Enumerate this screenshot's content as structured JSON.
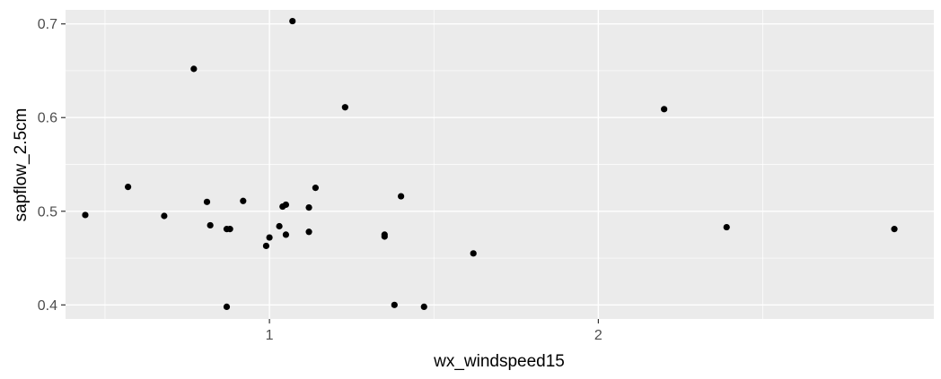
{
  "chart_data": {
    "type": "scatter",
    "title": "",
    "xlabel": "wx_windspeed15",
    "ylabel": "sapflow_2.5cm",
    "xlim": [
      0.38,
      3.02
    ],
    "ylim": [
      0.385,
      0.715
    ],
    "x_ticks": [
      1,
      2
    ],
    "x_tick_labels": [
      "1",
      "2"
    ],
    "x_minor_ticks": [
      0.5,
      1.5,
      2.5
    ],
    "y_ticks": [
      0.4,
      0.5,
      0.6,
      0.7
    ],
    "y_tick_labels": [
      "0.4",
      "0.5",
      "0.6",
      "0.7"
    ],
    "y_minor_ticks": [
      0.45,
      0.55,
      0.65
    ],
    "grid": true,
    "legend": "none",
    "colors": {
      "panel": "#ebebeb",
      "grid": "#ffffff",
      "point": "#000000",
      "tick_label": "#4d4d4d",
      "tick_mark": "#333333"
    },
    "points": [
      {
        "x": 0.44,
        "y": 0.496
      },
      {
        "x": 0.57,
        "y": 0.526
      },
      {
        "x": 0.68,
        "y": 0.495
      },
      {
        "x": 0.77,
        "y": 0.652
      },
      {
        "x": 0.81,
        "y": 0.51
      },
      {
        "x": 0.82,
        "y": 0.485
      },
      {
        "x": 0.87,
        "y": 0.481
      },
      {
        "x": 0.88,
        "y": 0.481
      },
      {
        "x": 0.87,
        "y": 0.398
      },
      {
        "x": 0.92,
        "y": 0.511
      },
      {
        "x": 0.99,
        "y": 0.463
      },
      {
        "x": 1.0,
        "y": 0.472
      },
      {
        "x": 1.03,
        "y": 0.484
      },
      {
        "x": 1.04,
        "y": 0.505
      },
      {
        "x": 1.05,
        "y": 0.507
      },
      {
        "x": 1.05,
        "y": 0.475
      },
      {
        "x": 1.07,
        "y": 0.703
      },
      {
        "x": 1.12,
        "y": 0.504
      },
      {
        "x": 1.12,
        "y": 0.478
      },
      {
        "x": 1.14,
        "y": 0.525
      },
      {
        "x": 1.23,
        "y": 0.611
      },
      {
        "x": 1.35,
        "y": 0.475
      },
      {
        "x": 1.35,
        "y": 0.473
      },
      {
        "x": 1.38,
        "y": 0.4
      },
      {
        "x": 1.4,
        "y": 0.516
      },
      {
        "x": 1.47,
        "y": 0.398
      },
      {
        "x": 1.62,
        "y": 0.455
      },
      {
        "x": 2.2,
        "y": 0.609
      },
      {
        "x": 2.39,
        "y": 0.483
      },
      {
        "x": 2.9,
        "y": 0.481
      }
    ]
  }
}
